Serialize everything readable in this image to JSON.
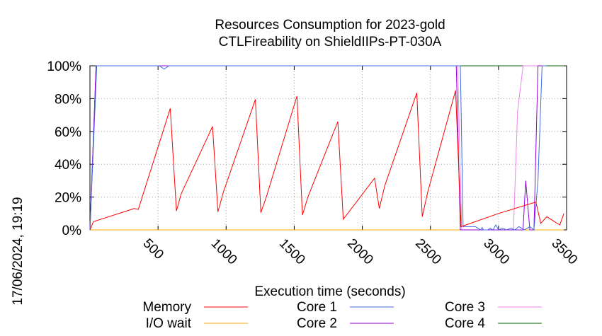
{
  "chart_data": {
    "type": "line",
    "title": [
      "Resources Consumption for 2023-gold",
      "CTLFireability on ShieldIIPs-PT-030A"
    ],
    "xlabel": "Execution time (seconds)",
    "ylabel": "",
    "xlim": [
      0,
      3500
    ],
    "ylim": [
      0,
      100
    ],
    "x_ticks": [
      500,
      1000,
      1500,
      2000,
      2500,
      3000,
      3500
    ],
    "y_ticks": [
      0,
      20,
      40,
      60,
      80,
      100
    ],
    "y_tick_labels": [
      "0%",
      "20%",
      "40%",
      "60%",
      "80%",
      "100%"
    ],
    "grid": true,
    "legend": "bottom",
    "timestamp": "17/06/2024, 19:19",
    "series": [
      {
        "name": "Memory",
        "color": "#ff0000",
        "x": [
          0,
          25,
          325,
          355,
          590,
          635,
          670,
          900,
          940,
          980,
          1215,
          1255,
          1295,
          1520,
          1560,
          1600,
          1820,
          1860,
          2090,
          2125,
          2165,
          2400,
          2440,
          2480,
          2685,
          2725,
          3000,
          3275,
          3310,
          3355,
          3450,
          3480
        ],
        "y": [
          0,
          5,
          13,
          12.5,
          74,
          11.5,
          22,
          63,
          11,
          23,
          79.5,
          10.5,
          20,
          81.5,
          9,
          20,
          66,
          6.5,
          31.5,
          13,
          27,
          83.5,
          8,
          23,
          85,
          2,
          10,
          17,
          4,
          8,
          3,
          10
        ]
      },
      {
        "name": "I/O wait",
        "color": "#ffa500",
        "x": [
          0,
          3480
        ],
        "y": [
          0,
          0
        ]
      },
      {
        "name": "Core 1",
        "color": "#4169e1",
        "x": [
          0,
          50,
          510,
          545,
          580,
          2720,
          2740,
          2770,
          2830,
          2870,
          2880,
          2890,
          2920,
          2940,
          2960,
          2980,
          3000,
          3030,
          3060,
          3090,
          3120,
          3150,
          3190,
          3230,
          3260,
          3290,
          3320,
          3350
        ],
        "y": [
          0,
          100,
          100,
          98,
          100,
          100,
          2,
          2,
          2,
          0,
          1.5,
          0,
          0,
          1,
          0,
          3,
          0,
          1,
          0,
          1,
          0,
          2,
          0,
          2,
          0,
          30,
          100,
          100
        ]
      },
      {
        "name": "Core 2",
        "color": "#9400d3",
        "x": [
          0,
          45,
          2690,
          2720,
          2730,
          3180,
          3200,
          3230,
          3260,
          3290,
          3320,
          3350
        ],
        "y": [
          0,
          100,
          100,
          0,
          0,
          0,
          30,
          0,
          0,
          100,
          100,
          100
        ]
      },
      {
        "name": "Core 3",
        "color": "#ee82ee",
        "x": [
          0,
          45,
          2700,
          2730,
          2745,
          3085,
          3110,
          3140,
          3180,
          3200,
          3230,
          3260,
          3350
        ],
        "y": [
          0,
          100,
          100,
          0,
          0,
          0,
          0,
          72,
          100,
          100,
          100,
          100,
          100
        ]
      },
      {
        "name": "Core 4",
        "color": "#006400",
        "x": [
          0,
          45,
          3480
        ],
        "y": [
          0,
          100,
          100
        ]
      }
    ]
  }
}
